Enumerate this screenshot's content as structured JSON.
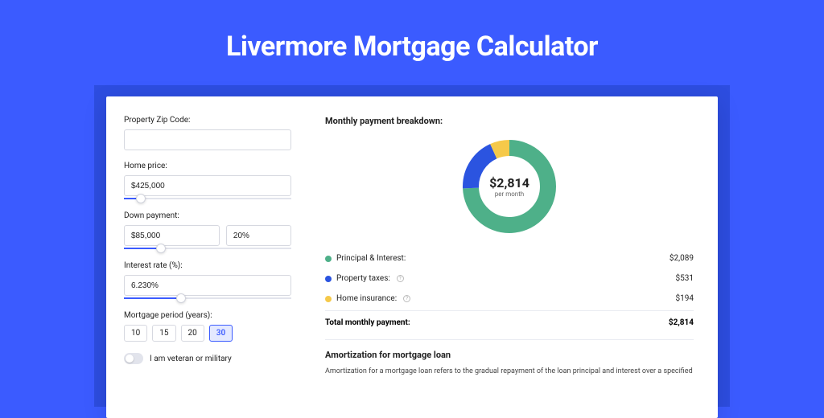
{
  "page": {
    "title": "Livermore Mortgage Calculator",
    "bg_color": "#3b5bff",
    "strip_color": "#2d4de0"
  },
  "form": {
    "zip_label": "Property Zip Code:",
    "zip_value": "",
    "home_price_label": "Home price:",
    "home_price_value": "$425,000",
    "home_price_slider_pct": 10,
    "down_label": "Down payment:",
    "down_value": "$85,000",
    "down_pct_value": "20%",
    "down_slider_pct": 22,
    "rate_label": "Interest rate (%):",
    "rate_value": "6.230%",
    "rate_slider_pct": 34,
    "period_label": "Mortgage period (years):",
    "periods": [
      "10",
      "15",
      "20",
      "30"
    ],
    "period_active_index": 3,
    "veteran_label": "I am veteran or military",
    "veteran_on": false
  },
  "breakdown": {
    "title": "Monthly payment breakdown:",
    "center_amount": "$2,814",
    "center_sub": "per month",
    "donut": {
      "radius": 48,
      "stroke_width": 20,
      "slices": [
        {
          "label": "Principal & Interest:",
          "value": "$2,089",
          "color": "#4eb089",
          "pct": 74.2,
          "has_info": false
        },
        {
          "label": "Property taxes:",
          "value": "$531",
          "color": "#2b54e0",
          "pct": 18.9,
          "has_info": true
        },
        {
          "label": "Home insurance:",
          "value": "$194",
          "color": "#f5c94a",
          "pct": 6.9,
          "has_info": true
        }
      ]
    },
    "total_label": "Total monthly payment:",
    "total_value": "$2,814"
  },
  "amortization": {
    "title": "Amortization for mortgage loan",
    "text": "Amortization for a mortgage loan refers to the gradual repayment of the loan principal and interest over a specified"
  }
}
